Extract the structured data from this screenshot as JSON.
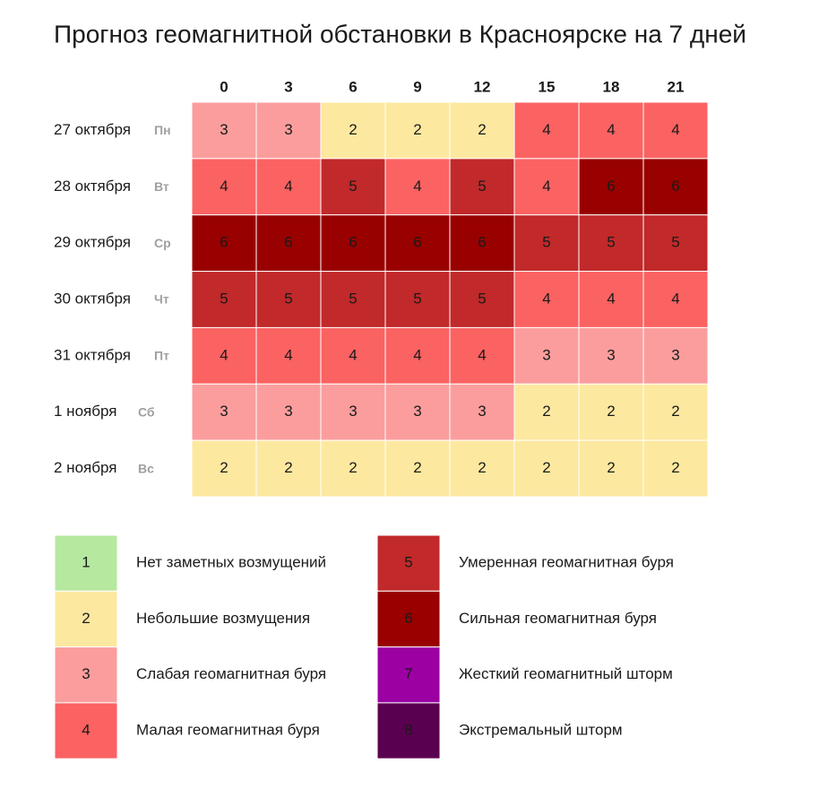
{
  "chart_data": {
    "type": "heatmap",
    "title": "Прогноз геомагнитной обстановки в Красноярске на 7 дней",
    "columns": [
      "0",
      "3",
      "6",
      "9",
      "12",
      "15",
      "18",
      "21"
    ],
    "rows": [
      {
        "date": "27 октября",
        "day": "Пн"
      },
      {
        "date": "28 октября",
        "day": "Вт"
      },
      {
        "date": "29 октября",
        "day": "Ср"
      },
      {
        "date": "30 октября",
        "day": "Чт"
      },
      {
        "date": "31 октября",
        "day": "Пт"
      },
      {
        "date": "1 ноября",
        "day": "Сб"
      },
      {
        "date": "2 ноября",
        "day": "Вс"
      }
    ],
    "values": [
      [
        3,
        3,
        2,
        2,
        2,
        4,
        4,
        4
      ],
      [
        4,
        4,
        5,
        4,
        5,
        4,
        6,
        6
      ],
      [
        6,
        6,
        6,
        6,
        6,
        5,
        5,
        5
      ],
      [
        5,
        5,
        5,
        5,
        5,
        4,
        4,
        4
      ],
      [
        4,
        4,
        4,
        4,
        4,
        3,
        3,
        3
      ],
      [
        3,
        3,
        3,
        3,
        3,
        2,
        2,
        2
      ],
      [
        2,
        2,
        2,
        2,
        2,
        2,
        2,
        2
      ]
    ],
    "levels": [
      {
        "value": 1,
        "label": "Нет заметных возмущений",
        "color": "#b6e8a0"
      },
      {
        "value": 2,
        "label": "Небольшие возмущения",
        "color": "#fde8a0"
      },
      {
        "value": 3,
        "label": "Слабая геомагнитная буря",
        "color": "#fb9d9d"
      },
      {
        "value": 4,
        "label": "Малая геомагнитная буря",
        "color": "#fb6262"
      },
      {
        "value": 5,
        "label": "Умеренная геомагнитная буря",
        "color": "#c1292a"
      },
      {
        "value": 6,
        "label": "Сильная геомагнитная буря",
        "color": "#990000"
      },
      {
        "value": 7,
        "label": "Жесткий геомагнитный шторм",
        "color": "#9c00a3"
      },
      {
        "value": 8,
        "label": "Экстремальный шторм",
        "color": "#5a0050"
      }
    ]
  }
}
